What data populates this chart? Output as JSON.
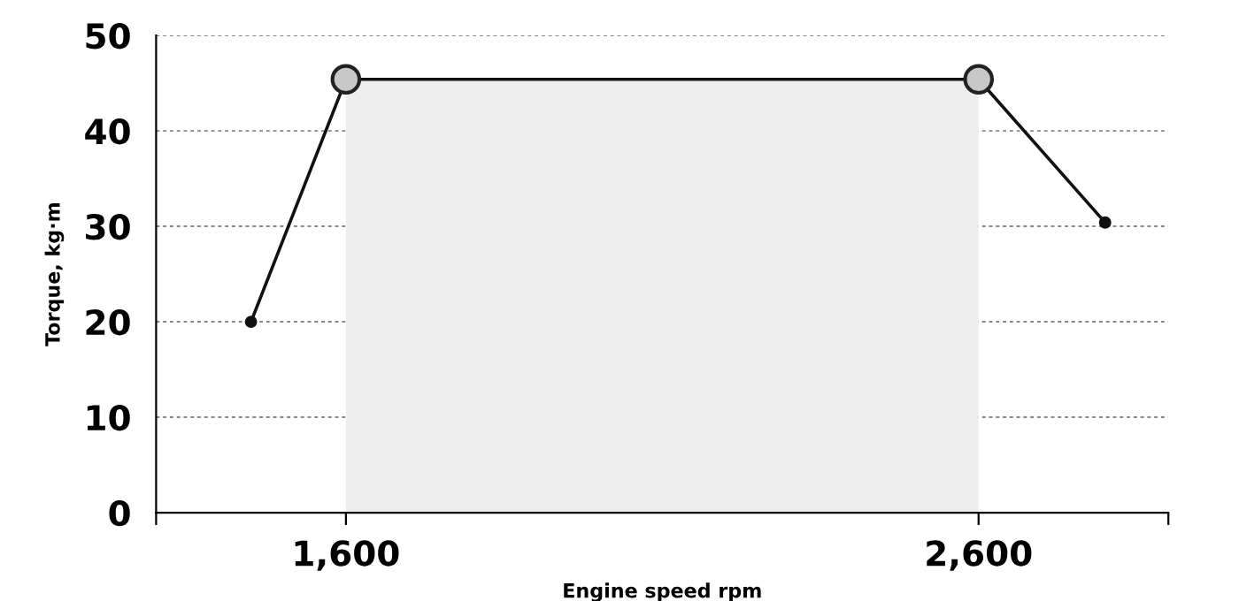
{
  "chart_data": {
    "type": "line",
    "xlabel": "Engine speed rpm",
    "ylabel": "Torque, kg·m",
    "xlim": [
      1300,
      2900
    ],
    "xticks": [
      {
        "value": 1300,
        "label": null
      },
      {
        "value": 1600,
        "label": "1,600"
      },
      {
        "value": 2600,
        "label": "2,600"
      },
      {
        "value": 2900,
        "label": null
      }
    ],
    "ylim": [
      0,
      50
    ],
    "yticks": [
      0,
      10,
      20,
      30,
      40,
      50
    ],
    "grid": "y",
    "series": [
      {
        "type": "area",
        "x": [
          1600,
          2600
        ],
        "values": [
          45.4,
          45.4
        ],
        "color": "#eeeeee"
      },
      {
        "x": [
          1450,
          1600,
          2600,
          2800
        ],
        "values": [
          20,
          45.4,
          45.4,
          30.4
        ],
        "color": "#111111",
        "marker": "circle"
      },
      {
        "type": "scatter",
        "x": [
          1600,
          2600
        ],
        "values": [
          45.4,
          45.4
        ],
        "color": "#c8c8c8",
        "marker": "circle"
      }
    ]
  }
}
